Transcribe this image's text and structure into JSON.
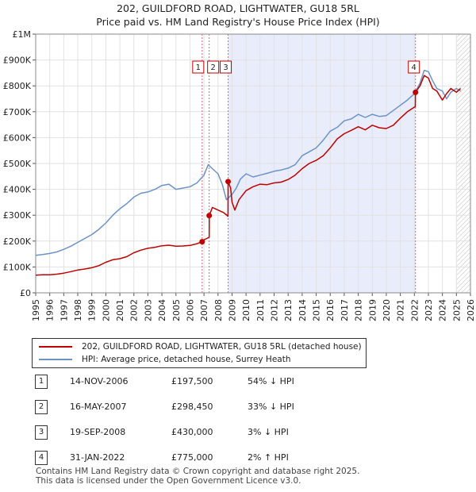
{
  "title": {
    "line1": "202, GUILDFORD ROAD, LIGHTWATER, GU18 5RL",
    "line2": "Price paid vs. HM Land Registry's House Price Index (HPI)"
  },
  "colors": {
    "price_line": "#c00000",
    "hpi_line": "#6b93c8",
    "shade": "#e8ecfb",
    "marker_line": "#e06080"
  },
  "chart_data": {
    "type": "line",
    "title": "Price paid vs. HM Land Registry's House Price Index (HPI)",
    "xlabel": "",
    "ylabel": "",
    "xlim": [
      1995,
      2026
    ],
    "ylim": [
      0,
      1000000
    ],
    "x_ticks": [
      "1995",
      "1996",
      "1997",
      "1998",
      "1999",
      "2000",
      "2001",
      "2002",
      "2003",
      "2004",
      "2005",
      "2006",
      "2007",
      "2008",
      "2009",
      "2010",
      "2011",
      "2012",
      "2013",
      "2014",
      "2015",
      "2016",
      "2017",
      "2018",
      "2019",
      "2020",
      "2021",
      "2022",
      "2023",
      "2024",
      "2025",
      "2026"
    ],
    "y_ticks": [
      {
        "value": 0,
        "label": "£0"
      },
      {
        "value": 100000,
        "label": "£100K"
      },
      {
        "value": 200000,
        "label": "£200K"
      },
      {
        "value": 300000,
        "label": "£300K"
      },
      {
        "value": 400000,
        "label": "£400K"
      },
      {
        "value": 500000,
        "label": "£500K"
      },
      {
        "value": 600000,
        "label": "£600K"
      },
      {
        "value": 700000,
        "label": "£700K"
      },
      {
        "value": 800000,
        "label": "£800K"
      },
      {
        "value": 900000,
        "label": "£900K"
      },
      {
        "value": 1000000,
        "label": "£1M"
      }
    ],
    "shaded_ranges": [
      [
        2008.72,
        2022.08
      ]
    ],
    "hatched_from": 2025.0,
    "series": [
      {
        "name": "202, GUILDFORD ROAD, LIGHTWATER, GU18 5RL (detached house)",
        "color": "#c00000",
        "x": [
          1995,
          1995.5,
          1996,
          1996.5,
          1997,
          1997.5,
          1998,
          1998.5,
          1999,
          1999.5,
          2000,
          2000.5,
          2001,
          2001.5,
          2002,
          2002.5,
          2003,
          2003.5,
          2004,
          2004.5,
          2005,
          2005.5,
          2006,
          2006.5,
          2006.87,
          2006.88,
          2007.0,
          2007.2,
          2007.37,
          2007.38,
          2007.6,
          2008.0,
          2008.4,
          2008.71,
          2008.72,
          2008.9,
          2009.0,
          2009.2,
          2009.5,
          2010,
          2010.5,
          2011,
          2011.5,
          2012,
          2012.5,
          2013,
          2013.5,
          2014,
          2014.5,
          2015,
          2015.5,
          2016,
          2016.5,
          2017,
          2017.5,
          2018,
          2018.5,
          2019,
          2019.5,
          2020,
          2020.5,
          2021,
          2021.5,
          2022.07,
          2022.08,
          2022.4,
          2022.7,
          2023,
          2023.3,
          2023.6,
          2024,
          2024.3,
          2024.6,
          2025,
          2025.3
        ],
        "values": [
          68000,
          70000,
          70000,
          72000,
          76000,
          82000,
          88000,
          92000,
          97000,
          105000,
          118000,
          128000,
          132000,
          140000,
          155000,
          165000,
          172000,
          176000,
          182000,
          184000,
          180000,
          181000,
          183000,
          190000,
          197500,
          200000,
          205000,
          210000,
          215000,
          298450,
          330000,
          320000,
          310000,
          296000,
          430000,
          405000,
          350000,
          320000,
          360000,
          395000,
          410000,
          420000,
          418000,
          425000,
          428000,
          438000,
          455000,
          480000,
          500000,
          512000,
          530000,
          560000,
          595000,
          615000,
          628000,
          642000,
          630000,
          648000,
          638000,
          635000,
          648000,
          675000,
          700000,
          720000,
          775000,
          800000,
          840000,
          830000,
          790000,
          780000,
          745000,
          770000,
          790000,
          775000,
          790000
        ]
      },
      {
        "name": "HPI: Average price, detached house, Surrey Heath",
        "color": "#6b93c8",
        "x": [
          1995,
          1995.5,
          1996,
          1996.5,
          1997,
          1997.5,
          1998,
          1998.5,
          1999,
          1999.5,
          2000,
          2000.5,
          2001,
          2001.5,
          2002,
          2002.5,
          2003,
          2003.5,
          2004,
          2004.5,
          2005,
          2005.5,
          2006,
          2006.5,
          2007,
          2007.3,
          2007.6,
          2008,
          2008.3,
          2008.6,
          2009,
          2009.3,
          2009.6,
          2010,
          2010.5,
          2011,
          2011.5,
          2012,
          2012.5,
          2013,
          2013.5,
          2014,
          2014.5,
          2015,
          2015.5,
          2016,
          2016.5,
          2017,
          2017.5,
          2018,
          2018.5,
          2019,
          2019.5,
          2020,
          2020.5,
          2021,
          2021.5,
          2022,
          2022.4,
          2022.7,
          2023,
          2023.3,
          2023.6,
          2024,
          2024.3,
          2024.6,
          2025,
          2025.3
        ],
        "values": [
          145000,
          148000,
          152000,
          158000,
          168000,
          180000,
          195000,
          210000,
          225000,
          245000,
          270000,
          300000,
          325000,
          345000,
          370000,
          385000,
          390000,
          400000,
          415000,
          420000,
          400000,
          405000,
          410000,
          425000,
          455000,
          495000,
          480000,
          460000,
          420000,
          360000,
          380000,
          405000,
          440000,
          460000,
          448000,
          455000,
          462000,
          470000,
          475000,
          482000,
          495000,
          530000,
          545000,
          560000,
          590000,
          625000,
          640000,
          665000,
          672000,
          690000,
          678000,
          690000,
          682000,
          685000,
          705000,
          725000,
          745000,
          770000,
          810000,
          860000,
          855000,
          820000,
          790000,
          780000,
          750000,
          775000,
          790000,
          780000
        ]
      }
    ],
    "transactions": [
      {
        "label": "1",
        "x": 2006.87,
        "price": 197500
      },
      {
        "label": "2",
        "x": 2007.37,
        "price": 298450
      },
      {
        "label": "3",
        "x": 2008.72,
        "price": 430000
      },
      {
        "label": "4",
        "x": 2022.08,
        "price": 775000
      }
    ]
  },
  "legend": {
    "price_label": "202, GUILDFORD ROAD, LIGHTWATER, GU18 5RL (detached house)",
    "hpi_label": "HPI: Average price, detached house, Surrey Heath"
  },
  "table": {
    "rows": [
      {
        "num": "1",
        "date": "14-NOV-2006",
        "price": "£197,500",
        "hpi": "54% ↓ HPI"
      },
      {
        "num": "2",
        "date": "16-MAY-2007",
        "price": "£298,450",
        "hpi": "33% ↓ HPI"
      },
      {
        "num": "3",
        "date": "19-SEP-2008",
        "price": "£430,000",
        "hpi": "3% ↓ HPI"
      },
      {
        "num": "4",
        "date": "31-JAN-2022",
        "price": "£775,000",
        "hpi": "2% ↑ HPI"
      }
    ]
  },
  "footer": {
    "line1": "Contains HM Land Registry data © Crown copyright and database right 2025.",
    "line2": "This data is licensed under the Open Government Licence v3.0."
  }
}
